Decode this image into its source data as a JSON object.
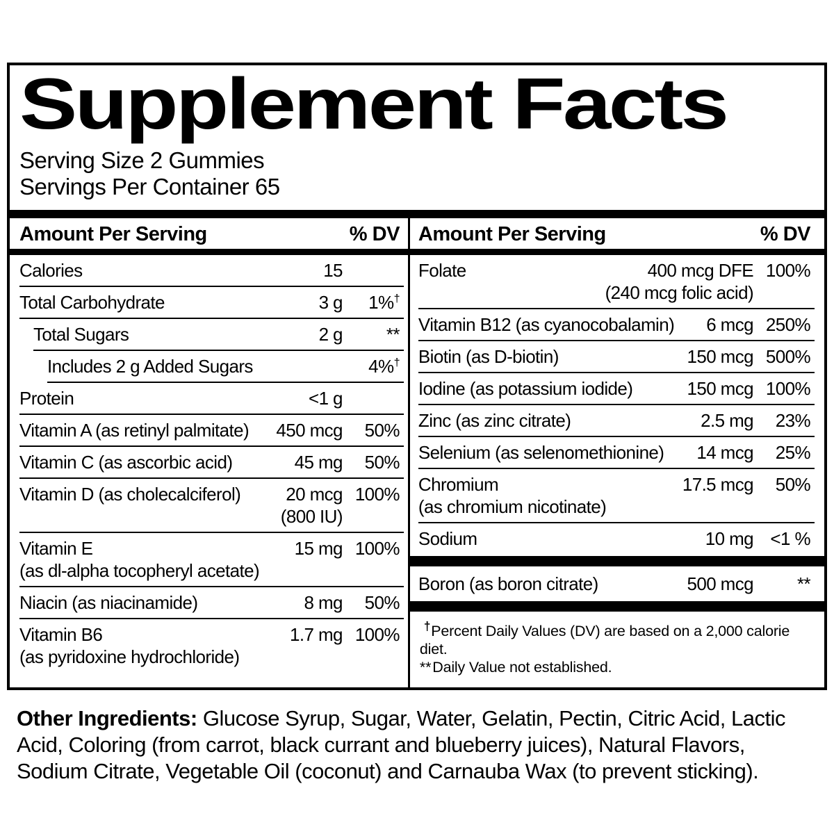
{
  "title": "Supplement Facts",
  "serving": {
    "size": "Serving Size 2 Gummies",
    "per_container": "Servings Per Container 65"
  },
  "table_header": {
    "amount": "Amount Per Serving",
    "dv": "% DV"
  },
  "left_rows": [
    {
      "name": "Calories",
      "amount": "15",
      "dv": "",
      "indent": 0,
      "sep": "hair"
    },
    {
      "name": "Total Carbohydrate",
      "amount": "3 g",
      "dv": "1%",
      "dv_sup": "†",
      "indent": 0,
      "sep": "hair"
    },
    {
      "name": "Total Sugars",
      "amount": "2 g",
      "dv": "**",
      "indent": 1,
      "sep": "hair"
    },
    {
      "name": "Includes 2 g Added Sugars",
      "amount": "",
      "dv": "4%",
      "dv_sup": "†",
      "indent": 2,
      "sep": "hair"
    },
    {
      "name": "Protein",
      "amount": "<1 g",
      "dv": "",
      "indent": 0,
      "sep": "hair"
    },
    {
      "name": "Vitamin A (as retinyl palmitate)",
      "amount": "450 mcg",
      "dv": "50%",
      "indent": 0,
      "sep": "hair"
    },
    {
      "name": "Vitamin C (as ascorbic acid)",
      "amount": "45 mg",
      "dv": "50%",
      "indent": 0,
      "sep": "hair"
    },
    {
      "name": "Vitamin D (as cholecalciferol)",
      "amount": "20 mcg",
      "amount2": "(800 IU)",
      "dv": "100%",
      "indent": 0,
      "sep": "hair"
    },
    {
      "name": "Vitamin E",
      "name2": "(as dl-alpha tocopheryl acetate)",
      "amount": "15 mg",
      "dv": "100%",
      "indent": 0,
      "sep": "hair"
    },
    {
      "name": "Niacin (as niacinamide)",
      "amount": "8 mg",
      "dv": "50%",
      "indent": 0,
      "sep": "hair"
    },
    {
      "name": "Vitamin B6",
      "name2": "(as pyridoxine hydrochloride)",
      "amount": "1.7 mg",
      "dv": "100%",
      "indent": 0,
      "sep": "none"
    }
  ],
  "right_rows": [
    {
      "name": "Folate",
      "amount": "400 mcg DFE",
      "amount2": "(240 mcg folic acid)",
      "dv": "100%",
      "indent": 0,
      "sep": "hair"
    },
    {
      "name": "Vitamin B12 (as cyanocobalamin)",
      "amount": "6 mcg",
      "dv": "250%",
      "indent": 0,
      "sep": "hair"
    },
    {
      "name": "Biotin (as D-biotin)",
      "amount": "150 mcg",
      "dv": "500%",
      "indent": 0,
      "sep": "hair"
    },
    {
      "name": "Iodine (as potassium iodide)",
      "amount": "150 mcg",
      "dv": "100%",
      "indent": 0,
      "sep": "hair"
    },
    {
      "name": "Zinc (as zinc citrate)",
      "amount": "2.5 mg",
      "dv": "23%",
      "indent": 0,
      "sep": "hair"
    },
    {
      "name": "Selenium (as selenomethionine)",
      "amount": "14 mcg",
      "dv": "25%",
      "indent": 0,
      "sep": "hair"
    },
    {
      "name": "Chromium",
      "name2": "(as chromium nicotinate)",
      "amount": "17.5 mcg",
      "dv": "50%",
      "indent": 0,
      "sep": "hair"
    },
    {
      "name": "Sodium",
      "amount": "10 mg",
      "dv": "<1 %",
      "indent": 0,
      "sep": "thick"
    },
    {
      "name": "Boron (as boron citrate)",
      "amount": "500 mcg",
      "dv": "**",
      "indent": 0,
      "sep": "thick"
    }
  ],
  "footnotes": [
    {
      "marker": "†",
      "text": "Percent Daily Values (DV) are based on a 2,000 calorie diet."
    },
    {
      "marker": "**",
      "text": "Daily Value not established."
    }
  ],
  "other_ingredients": {
    "label": "Other Ingredients:",
    "text": "Glucose Syrup, Sugar, Water, Gelatin, Pectin, Citric Acid, Lactic Acid, Coloring (from carrot, black currant and blueberry juices), Natural Flavors, Sodium Citrate, Vegetable Oil (coconut) and Carnauba Wax (to prevent sticking)."
  },
  "colors": {
    "ink": "#000000",
    "paper": "#ffffff"
  }
}
